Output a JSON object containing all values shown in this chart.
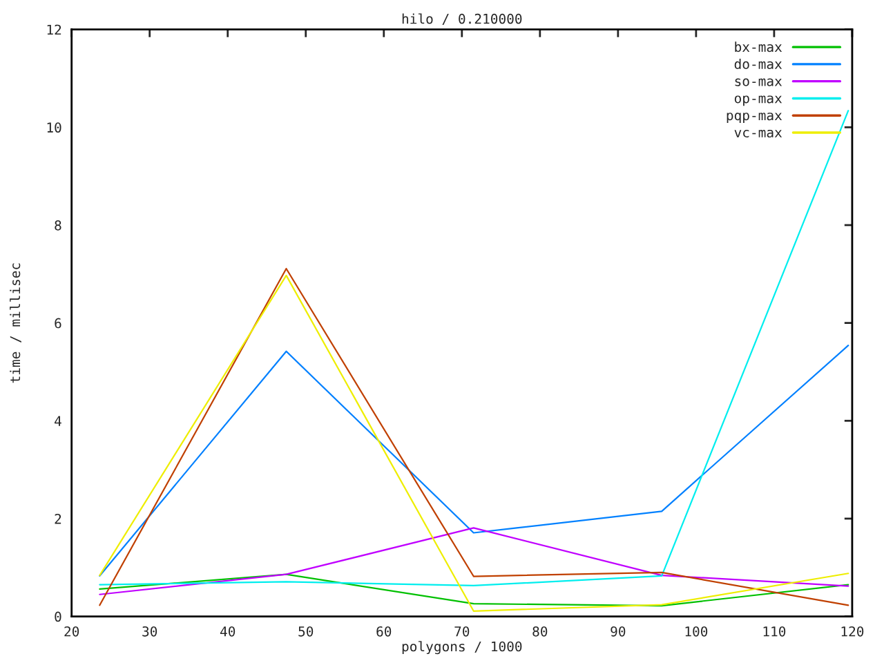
{
  "chart_data": {
    "type": "line",
    "title": "hilo / 0.210000",
    "xlabel": "polygons / 1000",
    "ylabel": "time / millisec",
    "x": [
      23.6,
      47.5,
      71.5,
      95.6,
      119.5
    ],
    "xlim": [
      20,
      120
    ],
    "xticks": [
      20,
      30,
      40,
      50,
      60,
      70,
      80,
      90,
      100,
      110,
      120
    ],
    "ylim": [
      0,
      12
    ],
    "yticks": [
      0,
      2,
      4,
      6,
      8,
      10,
      12
    ],
    "legend": "top right",
    "series": [
      {
        "name": "bx-max",
        "color": "#00c000",
        "values": [
          0.56,
          0.86,
          0.26,
          0.22,
          0.65
        ]
      },
      {
        "name": "do-max",
        "color": "#0080ff",
        "values": [
          0.83,
          5.42,
          1.71,
          2.15,
          5.54
        ]
      },
      {
        "name": "so-max",
        "color": "#c000ff",
        "values": [
          0.45,
          0.86,
          1.81,
          0.84,
          0.62
        ]
      },
      {
        "name": "op-max",
        "color": "#00eeee",
        "values": [
          0.65,
          0.71,
          0.63,
          0.83,
          10.34
        ]
      },
      {
        "name": "pqp-max",
        "color": "#c04000",
        "values": [
          0.23,
          7.11,
          0.82,
          0.9,
          0.23
        ]
      },
      {
        "name": "vc-max",
        "color": "#eeee00",
        "values": [
          0.84,
          6.97,
          0.11,
          0.24,
          0.88
        ]
      }
    ]
  }
}
